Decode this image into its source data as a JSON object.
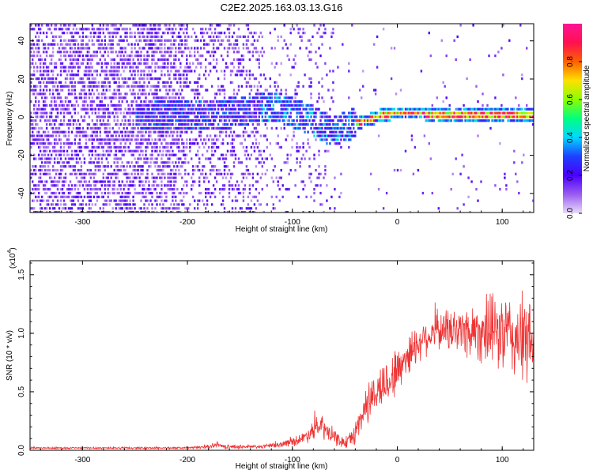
{
  "chart_data": [
    {
      "type": "heatmap",
      "title": "C2E2.2025.163.03.13.G16",
      "xlabel": "Height of straight line (km)",
      "ylabel": "Frequency (Hz)",
      "xlim": [
        -350,
        130
      ],
      "ylim": [
        -50,
        49
      ],
      "xticks": [
        -300,
        -200,
        -100,
        0,
        100
      ],
      "xtick_labels": [
        "-300",
        "-200",
        "-100",
        "0",
        "100"
      ],
      "yticks": [
        -40,
        -20,
        0,
        20,
        40
      ],
      "ytick_labels": [
        "-40",
        "-20",
        "0",
        "20",
        "40"
      ],
      "colorbar": {
        "label": "Normalized spectral amplitude",
        "range": [
          0,
          1
        ],
        "ticks": [
          0.0,
          0.2,
          0.4,
          0.6,
          0.8
        ],
        "tick_labels": [
          "0.0",
          "0.2",
          "0.4",
          "0.6",
          "0.8"
        ],
        "colors": [
          "#e8dcfa",
          "#9a5cf0",
          "#4b00ff",
          "#1e40ff",
          "#00d8ff",
          "#00ff80",
          "#8aff00",
          "#ffe000",
          "#ff6000",
          "#ff1050",
          "#ff1493"
        ]
      },
      "signal_track": {
        "description_free": true,
        "x": [
          -240,
          -200,
          -160,
          -130,
          -110,
          -90,
          -75,
          -62,
          -55,
          -45,
          -30,
          -15,
          0,
          50,
          100,
          130
        ],
        "freq": [
          0,
          1,
          2,
          5,
          4,
          0,
          -4,
          -8,
          -6,
          -4,
          -2,
          1,
          2,
          1,
          1,
          1
        ]
      }
    },
    {
      "type": "line",
      "xlabel": "Height of straight line (km)",
      "ylabel": "SNR (10 * v/v)",
      "multiplier_label": "(x10",
      "multiplier_exponent": "4",
      "xlim": [
        -350,
        130
      ],
      "ylim": [
        0,
        1.62
      ],
      "xticks": [
        -300,
        -200,
        -100,
        0,
        100
      ],
      "xtick_labels": [
        "-300",
        "-200",
        "-100",
        "0",
        "100"
      ],
      "yticks": [
        0.0,
        0.5,
        1.0,
        1.5
      ],
      "ytick_labels": [
        "0.0",
        "0.5",
        "1.0",
        "1.5"
      ],
      "color": "#ee3333",
      "envelope": {
        "x": [
          -350,
          -200,
          -180,
          -172,
          -165,
          -130,
          -110,
          -90,
          -80,
          -72,
          -65,
          -55,
          -48,
          -40,
          -30,
          -20,
          -10,
          0,
          10,
          25,
          40,
          60,
          80,
          100,
          115,
          130
        ],
        "mean": [
          0.02,
          0.02,
          0.03,
          0.05,
          0.03,
          0.03,
          0.05,
          0.1,
          0.18,
          0.2,
          0.14,
          0.08,
          0.06,
          0.15,
          0.38,
          0.5,
          0.58,
          0.68,
          0.82,
          0.96,
          1.03,
          1.02,
          1.02,
          1.0,
          0.95,
          0.9
        ],
        "amp": [
          0.01,
          0.01,
          0.02,
          0.03,
          0.02,
          0.02,
          0.03,
          0.06,
          0.1,
          0.12,
          0.1,
          0.06,
          0.05,
          0.12,
          0.2,
          0.22,
          0.24,
          0.25,
          0.22,
          0.18,
          0.2,
          0.25,
          0.32,
          0.4,
          0.45,
          0.45
        ]
      }
    }
  ]
}
